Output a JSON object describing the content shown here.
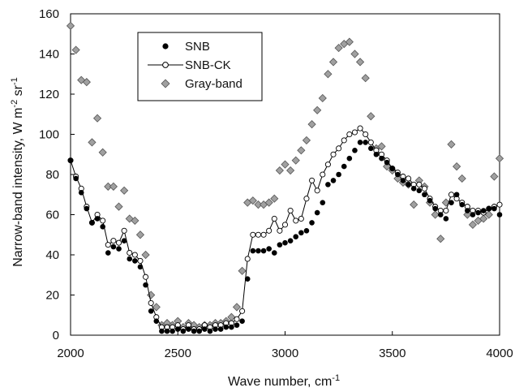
{
  "chart_data": {
    "type": "scatter",
    "xlabel": "Wave number, cm",
    "xlabel_sup": "-1",
    "ylabel_parts": [
      "Narrow-band intensity, W m",
      "-2",
      " sr",
      "-1"
    ],
    "xlim": [
      2000,
      4000
    ],
    "ylim": [
      0,
      160
    ],
    "x_ticks": [
      "2000",
      "2500",
      "3000",
      "3500",
      "4000"
    ],
    "y_ticks": [
      "0",
      "20",
      "40",
      "60",
      "80",
      "100",
      "120",
      "140",
      "160"
    ],
    "grid": false,
    "legend_position": "top-left",
    "series": [
      {
        "name": "SNB",
        "marker": "filled-circle",
        "line": false,
        "color": "#000000",
        "x": [
          2000,
          2025,
          2050,
          2075,
          2100,
          2125,
          2150,
          2175,
          2200,
          2225,
          2250,
          2275,
          2300,
          2325,
          2350,
          2375,
          2400,
          2425,
          2450,
          2475,
          2500,
          2525,
          2550,
          2575,
          2600,
          2625,
          2650,
          2675,
          2700,
          2725,
          2750,
          2775,
          2800,
          2825,
          2850,
          2875,
          2900,
          2925,
          2950,
          2975,
          3000,
          3025,
          3050,
          3075,
          3100,
          3125,
          3150,
          3175,
          3200,
          3225,
          3250,
          3275,
          3300,
          3325,
          3350,
          3375,
          3400,
          3425,
          3450,
          3475,
          3500,
          3525,
          3550,
          3575,
          3600,
          3625,
          3650,
          3675,
          3700,
          3725,
          3750,
          3775,
          3800,
          3825,
          3850,
          3875,
          3900,
          3925,
          3950,
          3975,
          4000
        ],
        "y": [
          87,
          78,
          71,
          63,
          56,
          58,
          54,
          41,
          44,
          43,
          47,
          38,
          37,
          34,
          25,
          12,
          7,
          2,
          2,
          2,
          3,
          2,
          3,
          2,
          2,
          3,
          2,
          3,
          3,
          4,
          4,
          5,
          7,
          28,
          42,
          42,
          42,
          43,
          41,
          45,
          46,
          47,
          49,
          51,
          52,
          56,
          61,
          66,
          75,
          77,
          80,
          84,
          88,
          92,
          96,
          96,
          93,
          90,
          88,
          86,
          83,
          80,
          77,
          75,
          73,
          72,
          70,
          67,
          63,
          60,
          58,
          66,
          70,
          65,
          62,
          60,
          61,
          62,
          63,
          63,
          60
        ]
      },
      {
        "name": "SNB-CK",
        "marker": "open-circle",
        "line": true,
        "color": "#000000",
        "x": [
          2000,
          2025,
          2050,
          2075,
          2100,
          2125,
          2150,
          2175,
          2200,
          2225,
          2250,
          2275,
          2300,
          2325,
          2350,
          2375,
          2400,
          2425,
          2450,
          2475,
          2500,
          2525,
          2550,
          2575,
          2600,
          2625,
          2650,
          2675,
          2700,
          2725,
          2750,
          2775,
          2800,
          2825,
          2850,
          2875,
          2900,
          2925,
          2950,
          2975,
          3000,
          3025,
          3050,
          3075,
          3100,
          3125,
          3150,
          3175,
          3200,
          3225,
          3250,
          3275,
          3300,
          3325,
          3350,
          3375,
          3400,
          3425,
          3450,
          3475,
          3500,
          3525,
          3550,
          3575,
          3600,
          3625,
          3650,
          3675,
          3700,
          3725,
          3750,
          3775,
          3800,
          3825,
          3850,
          3875,
          3900,
          3925,
          3950,
          3975,
          4000
        ],
        "y": [
          87,
          79,
          73,
          64,
          56,
          60,
          57,
          45,
          47,
          46,
          52,
          41,
          40,
          37,
          29,
          16,
          9,
          4,
          4,
          4,
          5,
          3,
          5,
          3,
          3,
          5,
          4,
          5,
          5,
          6,
          6,
          8,
          12,
          38,
          50,
          50,
          50,
          52,
          58,
          52,
          55,
          62,
          57,
          58,
          68,
          77,
          72,
          80,
          85,
          90,
          93,
          97,
          100,
          101,
          103,
          100,
          96,
          92,
          90,
          87,
          83,
          81,
          79,
          78,
          75,
          75,
          73,
          68,
          64,
          62,
          62,
          70,
          68,
          66,
          64,
          62,
          62,
          61,
          63,
          64,
          65
        ]
      },
      {
        "name": "Gray-band",
        "marker": "gray-diamond",
        "line": false,
        "color": "#9a9a9a",
        "x": [
          2000,
          2025,
          2050,
          2075,
          2100,
          2125,
          2150,
          2175,
          2200,
          2225,
          2250,
          2275,
          2300,
          2325,
          2350,
          2375,
          2400,
          2425,
          2450,
          2475,
          2500,
          2525,
          2550,
          2575,
          2600,
          2625,
          2650,
          2675,
          2700,
          2725,
          2750,
          2775,
          2800,
          2825,
          2850,
          2875,
          2900,
          2925,
          2950,
          2975,
          3000,
          3025,
          3050,
          3075,
          3100,
          3125,
          3150,
          3175,
          3200,
          3225,
          3250,
          3275,
          3300,
          3325,
          3350,
          3375,
          3400,
          3425,
          3450,
          3475,
          3500,
          3525,
          3550,
          3575,
          3600,
          3625,
          3650,
          3675,
          3700,
          3725,
          3750,
          3775,
          3800,
          3825,
          3850,
          3875,
          3900,
          3925,
          3950,
          3975,
          4000
        ],
        "y": [
          154,
          142,
          127,
          126,
          96,
          108,
          91,
          74,
          74,
          64,
          72,
          58,
          57,
          50,
          40,
          20,
          14,
          5,
          6,
          5,
          7,
          4,
          6,
          5,
          4,
          5,
          5,
          6,
          6,
          7,
          9,
          14,
          32,
          66,
          67,
          65,
          65,
          66,
          68,
          82,
          85,
          82,
          87,
          92,
          97,
          105,
          112,
          118,
          130,
          136,
          143,
          145,
          146,
          140,
          136,
          128,
          109,
          93,
          94,
          84,
          82,
          78,
          76,
          75,
          65,
          77,
          74,
          66,
          60,
          48,
          66,
          95,
          84,
          78,
          60,
          55,
          57,
          58,
          60,
          79,
          88
        ]
      }
    ]
  }
}
